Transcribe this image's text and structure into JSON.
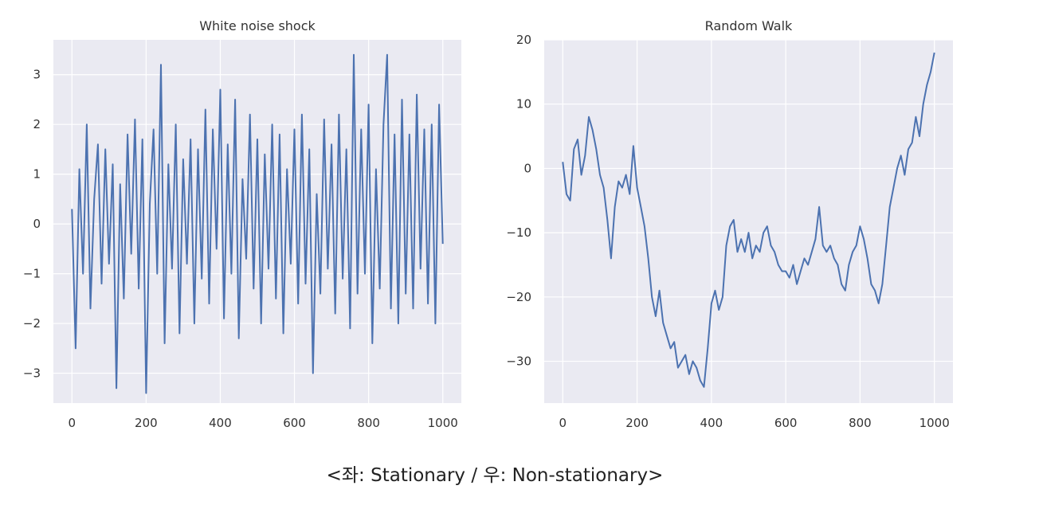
{
  "caption": "<좌: Stationary / 우: Non-stationary>",
  "colors": {
    "line": "#4c72b0",
    "plot_bg": "#eaeaf2",
    "grid": "#ffffff",
    "text": "#333333"
  },
  "chart_data": [
    {
      "type": "line",
      "title": "White noise shock",
      "grid": true,
      "xlim": [
        -50,
        1050
      ],
      "ylim": [
        -3.6,
        3.7
      ],
      "xticks": [
        0,
        200,
        400,
        600,
        800,
        1000
      ],
      "yticks": [
        -3,
        -2,
        -1,
        0,
        1,
        2,
        3
      ],
      "xtick_labels": [
        "0",
        "200",
        "400",
        "600",
        "800",
        "1000"
      ],
      "ytick_labels": [
        "−3",
        "−2",
        "−1",
        "0",
        "1",
        "2",
        "3"
      ],
      "series": [
        {
          "x": [
            0,
            10,
            20,
            30,
            40,
            50,
            60,
            70,
            80,
            90,
            100,
            110,
            120,
            130,
            140,
            150,
            160,
            170,
            180,
            190,
            200,
            210,
            220,
            230,
            240,
            250,
            260,
            270,
            280,
            290,
            300,
            310,
            320,
            330,
            340,
            350,
            360,
            370,
            380,
            390,
            400,
            410,
            420,
            430,
            440,
            450,
            460,
            470,
            480,
            490,
            500,
            510,
            520,
            530,
            540,
            550,
            560,
            570,
            580,
            590,
            600,
            610,
            620,
            630,
            640,
            650,
            660,
            670,
            680,
            690,
            700,
            710,
            720,
            730,
            740,
            750,
            760,
            770,
            780,
            790,
            800,
            810,
            820,
            830,
            840,
            850,
            860,
            870,
            880,
            890,
            900,
            910,
            920,
            930,
            940,
            950,
            960,
            970,
            980,
            990,
            1000
          ],
          "values": [
            0.3,
            -2.5,
            1.1,
            -1.0,
            2.0,
            -1.7,
            0.5,
            1.6,
            -1.2,
            1.5,
            -0.8,
            1.2,
            -3.3,
            0.8,
            -1.5,
            1.8,
            -0.6,
            2.1,
            -1.3,
            1.7,
            -3.4,
            0.4,
            1.9,
            -1.0,
            3.2,
            -2.4,
            1.2,
            -0.9,
            2.0,
            -2.2,
            1.3,
            -0.8,
            1.7,
            -2.0,
            1.5,
            -1.1,
            2.3,
            -1.6,
            1.9,
            -0.5,
            2.7,
            -1.9,
            1.6,
            -1.0,
            2.5,
            -2.3,
            0.9,
            -0.7,
            2.2,
            -1.3,
            1.7,
            -2.0,
            1.4,
            -0.9,
            2.0,
            -1.5,
            1.8,
            -2.2,
            1.1,
            -0.8,
            1.9,
            -1.6,
            2.2,
            -1.2,
            1.5,
            -3.0,
            0.6,
            -1.4,
            2.1,
            -0.9,
            1.6,
            -1.8,
            2.2,
            -1.1,
            1.5,
            -2.1,
            3.4,
            -1.4,
            1.9,
            -1.0,
            2.4,
            -2.4,
            1.1,
            -1.3,
            2.0,
            3.4,
            -1.7,
            1.8,
            -2.0,
            2.5,
            -1.4,
            1.8,
            -1.7,
            2.6,
            -0.9,
            1.9,
            -1.6,
            2.0,
            -2.0,
            2.4,
            -0.4
          ]
        }
      ]
    },
    {
      "type": "line",
      "title": "Random Walk",
      "grid": true,
      "xlim": [
        -50,
        1050
      ],
      "ylim": [
        -36.5,
        20
      ],
      "xticks": [
        0,
        200,
        400,
        600,
        800,
        1000
      ],
      "yticks": [
        -30,
        -20,
        -10,
        0,
        10,
        20
      ],
      "xtick_labels": [
        "0",
        "200",
        "400",
        "600",
        "800",
        "1000"
      ],
      "ytick_labels": [
        "−30",
        "−20",
        "−10",
        "0",
        "10",
        "20"
      ],
      "series": [
        {
          "x": [
            0,
            10,
            20,
            30,
            40,
            50,
            60,
            70,
            80,
            90,
            100,
            110,
            120,
            130,
            140,
            150,
            160,
            170,
            180,
            190,
            200,
            210,
            220,
            230,
            240,
            250,
            260,
            270,
            280,
            290,
            300,
            310,
            320,
            330,
            340,
            350,
            360,
            370,
            380,
            390,
            400,
            410,
            420,
            430,
            440,
            450,
            460,
            470,
            480,
            490,
            500,
            510,
            520,
            530,
            540,
            550,
            560,
            570,
            580,
            590,
            600,
            610,
            620,
            630,
            640,
            650,
            660,
            670,
            680,
            690,
            700,
            710,
            720,
            730,
            740,
            750,
            760,
            770,
            780,
            790,
            800,
            810,
            820,
            830,
            840,
            850,
            860,
            870,
            880,
            890,
            900,
            910,
            920,
            930,
            940,
            950,
            960,
            970,
            980,
            990,
            1000
          ],
          "values": [
            1,
            -4,
            -5,
            3,
            4.5,
            -1,
            2,
            8,
            6,
            3,
            -1,
            -3,
            -8,
            -14,
            -6,
            -2,
            -3,
            -1,
            -4,
            3.5,
            -3,
            -6,
            -9,
            -14,
            -20,
            -23,
            -19,
            -24,
            -26,
            -28,
            -27,
            -31,
            -30,
            -29,
            -32,
            -30,
            -31,
            -33,
            -34,
            -28,
            -21,
            -19,
            -22,
            -20,
            -12,
            -9,
            -8,
            -13,
            -11,
            -13,
            -10,
            -14,
            -12,
            -13,
            -10,
            -9,
            -12,
            -13,
            -15,
            -16,
            -16,
            -17,
            -15,
            -18,
            -16,
            -14,
            -15,
            -13,
            -11,
            -6,
            -12,
            -13,
            -12,
            -14,
            -15,
            -18,
            -19,
            -15,
            -13,
            -12,
            -9,
            -11,
            -14,
            -18,
            -19,
            -21,
            -18,
            -12,
            -6,
            -3,
            0,
            2,
            -1,
            3,
            4,
            8,
            5,
            10,
            13,
            15,
            18
          ]
        }
      ]
    }
  ]
}
